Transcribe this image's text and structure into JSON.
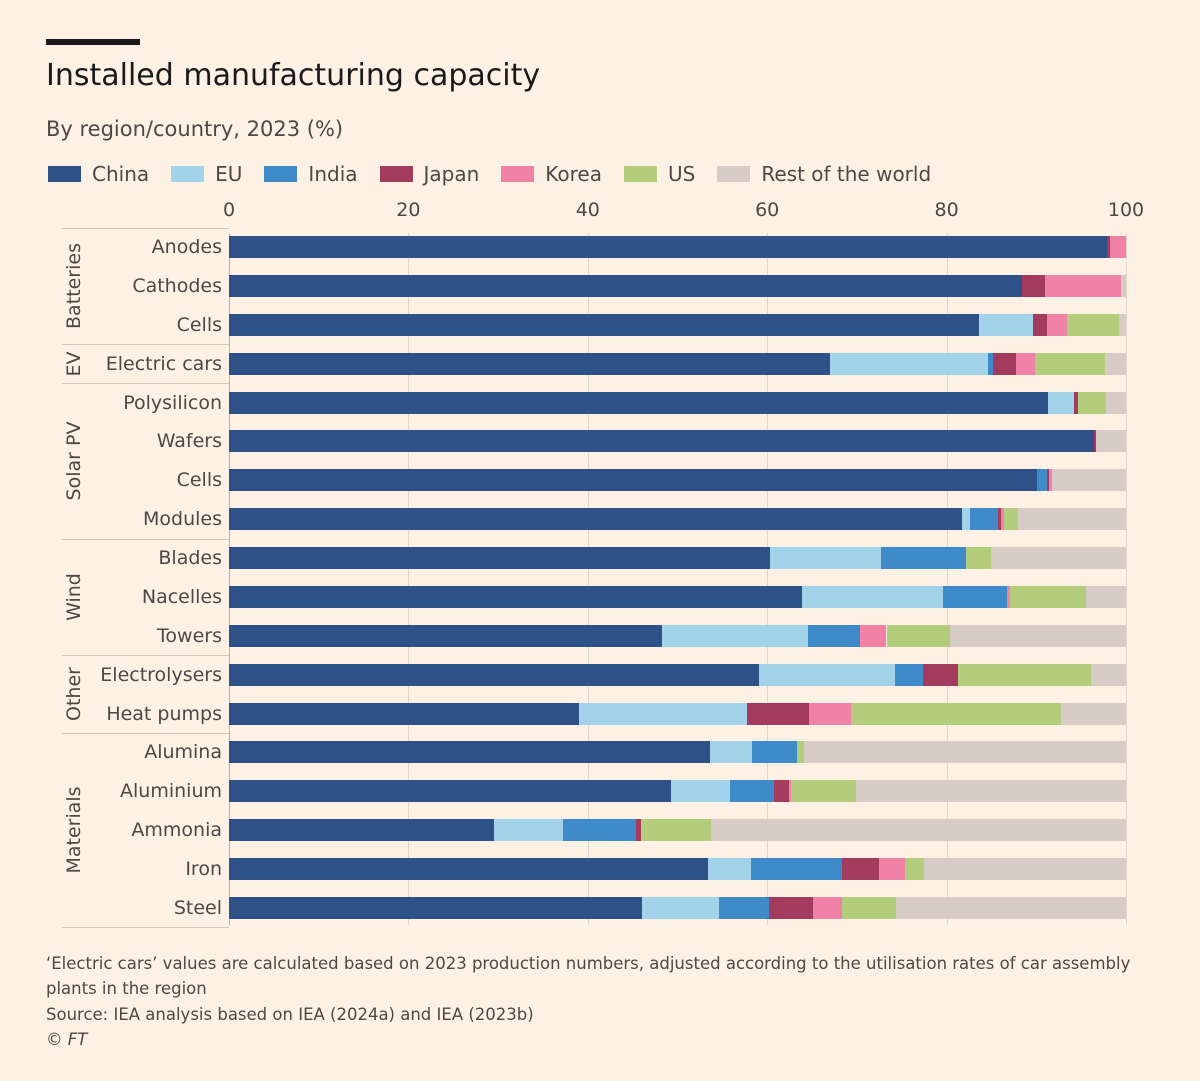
{
  "title": "Installed manufacturing capacity",
  "subtitle": "By region/country, 2023 (%)",
  "footnote": "‘Electric cars’ values are calculated based on 2023 production numbers, adjusted according to the utilisation rates of car assembly plants in the region",
  "source": "Source: IEA analysis based on IEA (2024a) and IEA (2023b)",
  "copyright": "© FT",
  "chart_data": {
    "type": "bar",
    "orientation": "horizontal",
    "stacked": true,
    "title": "Installed manufacturing capacity",
    "subtitle": "By region/country, 2023 (%)",
    "xlim": [
      0,
      100
    ],
    "xticks": [
      "0",
      "20",
      "40",
      "60",
      "80",
      "100"
    ],
    "grid": true,
    "legend_position": "top",
    "groups": [
      {
        "name": "Batteries",
        "categories": [
          "Anodes",
          "Cathodes",
          "Cells"
        ]
      },
      {
        "name": "EV",
        "categories": [
          "Electric cars"
        ]
      },
      {
        "name": "Solar PV",
        "categories": [
          "Polysilicon",
          "Wafers",
          "Cells",
          "Modules"
        ]
      },
      {
        "name": "Wind",
        "categories": [
          "Blades",
          "Nacelles",
          "Towers"
        ]
      },
      {
        "name": "Other",
        "categories": [
          "Electrolysers",
          "Heat pumps"
        ]
      },
      {
        "name": "Materials",
        "categories": [
          "Alumina",
          "Aluminium",
          "Ammonia",
          "Iron",
          "Steel"
        ]
      }
    ],
    "categories": [
      "Anodes",
      "Cathodes",
      "Cells",
      "Electric cars",
      "Polysilicon",
      "Wafers",
      "Cells",
      "Modules",
      "Blades",
      "Nacelles",
      "Towers",
      "Electrolysers",
      "Heat pumps",
      "Alumina",
      "Aluminium",
      "Ammonia",
      "Iron",
      "Steel"
    ],
    "series": [
      {
        "name": "China",
        "color": "#2e5287",
        "values": [
          97.9,
          88.4,
          83.6,
          67.0,
          91.3,
          96.4,
          90.1,
          81.7,
          60.3,
          63.9,
          48.3,
          59.1,
          39.0,
          53.6,
          49.3,
          29.5,
          53.4,
          46.0
        ]
      },
      {
        "name": "EU",
        "color": "#a3d3ea",
        "values": [
          0,
          0,
          6.0,
          17.6,
          2.9,
          0,
          0,
          0.9,
          12.4,
          15.7,
          16.2,
          15.1,
          18.7,
          4.7,
          6.6,
          7.7,
          4.8,
          8.6
        ]
      },
      {
        "name": "India",
        "color": "#3f8ac9",
        "values": [
          0,
          0,
          0,
          0.6,
          0,
          0,
          1.1,
          3.1,
          9.5,
          7.1,
          5.9,
          3.2,
          0,
          5.0,
          4.9,
          8.2,
          10.1,
          5.6
        ]
      },
      {
        "name": "Japan",
        "color": "#a23b5e",
        "values": [
          0.3,
          2.6,
          1.6,
          2.5,
          0.4,
          0.3,
          0.2,
          0.4,
          0,
          0,
          0,
          3.9,
          7.0,
          0,
          1.6,
          0.5,
          4.2,
          4.9
        ]
      },
      {
        "name": "Korea",
        "color": "#ef82a6",
        "values": [
          1.8,
          8.4,
          2.2,
          2.2,
          0,
          0,
          0.4,
          0.3,
          0,
          0.4,
          2.9,
          0,
          4.6,
          0,
          0.3,
          0,
          2.9,
          3.2
        ]
      },
      {
        "name": "US",
        "color": "#b4cd7c",
        "values": [
          0,
          0,
          5.8,
          7.8,
          3.2,
          0,
          0,
          1.6,
          2.7,
          8.4,
          7.1,
          14.8,
          23.4,
          0.8,
          7.2,
          7.8,
          2.1,
          6.1
        ]
      },
      {
        "name": "Rest of the world",
        "color": "#d6ccc5",
        "values": [
          0,
          0.6,
          0.8,
          2.3,
          2.2,
          3.3,
          8.2,
          12.0,
          15.1,
          4.5,
          19.6,
          3.9,
          7.3,
          35.9,
          30.1,
          46.3,
          22.5,
          25.6
        ]
      }
    ]
  }
}
